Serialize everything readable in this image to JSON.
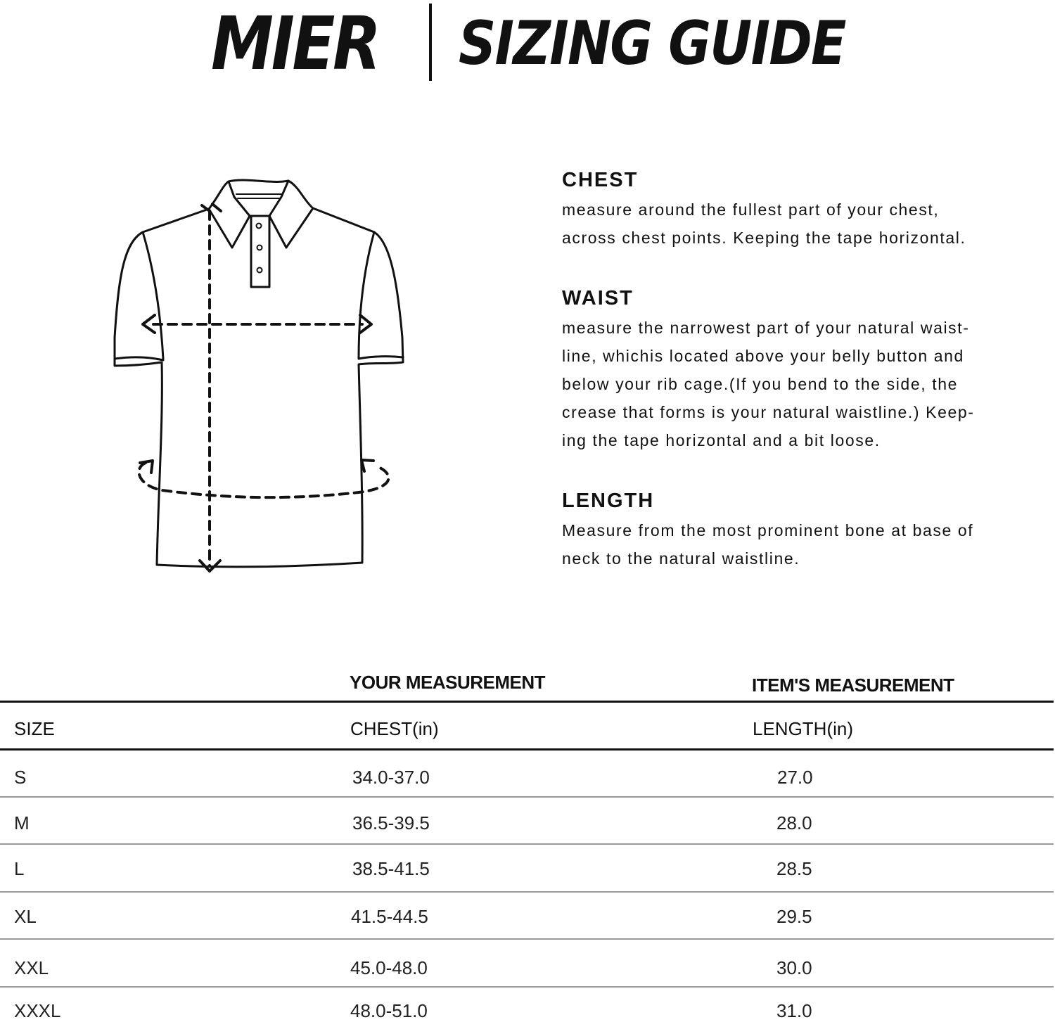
{
  "header": {
    "brand": "MIER",
    "title": "SIZING GUIDE"
  },
  "instructions": [
    {
      "title": "CHEST",
      "body": "measure around the fullest part of your chest,\nacross chest points. Keeping the tape horizontal."
    },
    {
      "title": "WAIST",
      "body": "measure the narrowest part of your natural waist-\nline, whichis located above your belly button and\nbelow your rib cage.(If you bend to the side, the\ncrease that forms is your natural waistline.) Keep-\ning the tape horizontal and a bit loose."
    },
    {
      "title": "LENGTH",
      "body": "Measure from the most prominent bone at base of\nneck to the natural waistline."
    }
  ],
  "table": {
    "group_headers": [
      "YOUR MEASUREMENT",
      "ITEM'S MEASUREMENT"
    ],
    "columns": [
      "SIZE",
      "CHEST(in)",
      "LENGTH(in)"
    ],
    "rows": [
      [
        "S",
        "34.0-37.0",
        "27.0"
      ],
      [
        "M",
        "36.5-39.5",
        "28.0"
      ],
      [
        "L",
        "38.5-41.5",
        "28.5"
      ],
      [
        "XL",
        "41.5-44.5",
        "29.5"
      ],
      [
        "XXL",
        "45.0-48.0",
        "30.0"
      ],
      [
        "XXXL",
        "48.0-51.0",
        "31.0"
      ]
    ]
  }
}
